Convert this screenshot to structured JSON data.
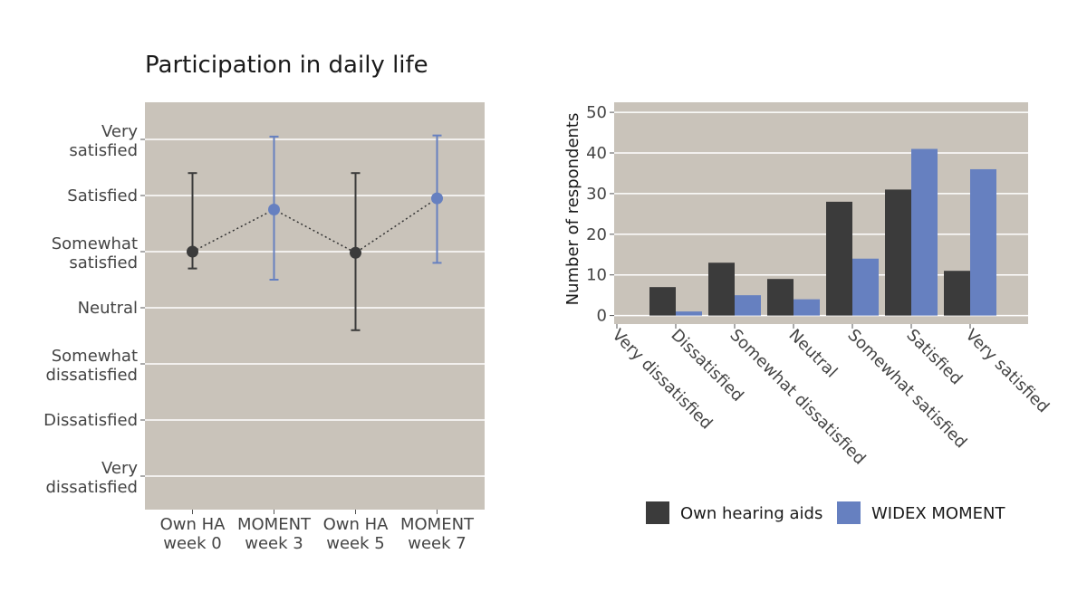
{
  "chart_data": [
    {
      "type": "scatter",
      "title": "Participation in daily life",
      "xlabel": "",
      "ylabel": "",
      "categories": [
        "Own HA\nweek 0",
        "MOMENT\nweek 3",
        "Own HA\nweek 5",
        "MOMENT\nweek 7"
      ],
      "y_levels": [
        "Very\ndissatisfied",
        "Dissatisfied",
        "Somewhat\ndissatisfied",
        "Neutral",
        "Somewhat\nsatisfied",
        "Satisfied",
        "Very\nsatisfied"
      ],
      "ylim": [
        1,
        7
      ],
      "points": [
        {
          "category": "Own HA\nweek 0",
          "mean": 5.0,
          "lower": 4.7,
          "upper": 6.4,
          "color": "#3b3b3b"
        },
        {
          "category": "MOMENT\nweek 3",
          "mean": 5.75,
          "lower": 4.5,
          "upper": 7.05,
          "color": "#6680c0"
        },
        {
          "category": "Own HA\nweek 5",
          "mean": 4.98,
          "lower": 3.6,
          "upper": 6.4,
          "color": "#3b3b3b"
        },
        {
          "category": "MOMENT\nweek 7",
          "mean": 5.95,
          "lower": 4.8,
          "upper": 7.07,
          "color": "#6680c0"
        }
      ],
      "connector": "dotted",
      "grid": true
    },
    {
      "type": "bar",
      "xlabel": "",
      "ylabel": "Number of respondents",
      "ylim": [
        0,
        52
      ],
      "yticks": [
        0,
        10,
        20,
        30,
        40,
        50
      ],
      "categories": [
        "Very dissatisfied",
        "Dissatisfied",
        "Somewhat dissatisfied",
        "Neutral",
        "Somewhat satisfied",
        "Satisfied",
        "Very satisfied"
      ],
      "series": [
        {
          "name": "Own hearing aids",
          "values": [
            0,
            7,
            13,
            9,
            28,
            31,
            11
          ],
          "color": "#3b3b3b"
        },
        {
          "name": "WIDEX MOMENT",
          "values": [
            0,
            1,
            5,
            4,
            14,
            41,
            36
          ],
          "color": "#6680c0"
        }
      ],
      "grid": true,
      "legend_position": "bottom"
    }
  ],
  "colors": {
    "panel_background": "#c9c3ba",
    "gridline": "#ffffff",
    "dark": "#3b3b3b",
    "blue": "#6680c0"
  }
}
